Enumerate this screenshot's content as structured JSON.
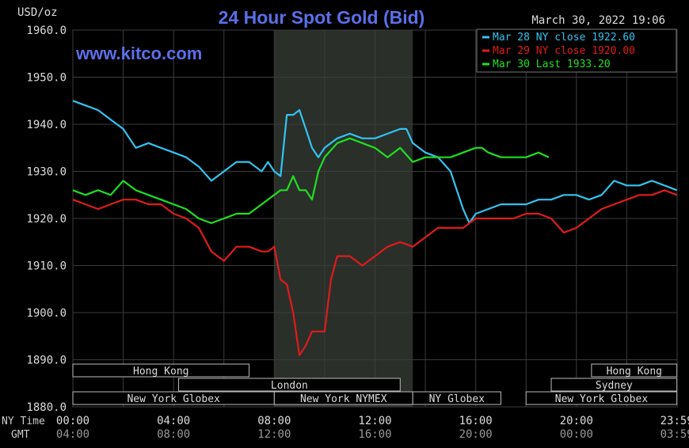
{
  "header": {
    "unit_label": "USD/oz",
    "title": "24 Hour Spot Gold (Bid)",
    "timestamp": "March 30, 2022 19:06",
    "watermark": "www.kitco.com"
  },
  "legend": [
    {
      "label": "Mar 28 NY close 1922.60",
      "color": "#33c3f0"
    },
    {
      "label": "Mar 29 NY close 1920.00",
      "color": "#e01b1b"
    },
    {
      "label": "Mar 30 Last 1933.20",
      "color": "#1fe01f"
    }
  ],
  "axis": {
    "ny_time_label": "NY Time",
    "gmt_label": "GMT",
    "ny_ticks": [
      "00:00",
      "04:00",
      "08:00",
      "12:00",
      "16:00",
      "20:00",
      "23:59"
    ],
    "gmt_ticks": [
      "04:00",
      "08:00",
      "12:00",
      "16:00",
      "20:00",
      "00:00",
      "03:59"
    ]
  },
  "sessions": {
    "row1": [
      {
        "label": "Hong Kong",
        "start": 0.0,
        "end": 7.0
      },
      {
        "label": "Hong Kong",
        "start": 20.6,
        "end": 23.99
      }
    ],
    "row2": [
      {
        "label": "London",
        "start": 4.2,
        "end": 13.0
      },
      {
        "label": "Sydney",
        "start": 19.0,
        "end": 23.99
      }
    ],
    "row3": [
      {
        "label": "New York Globex",
        "start": 0.0,
        "end": 8.0
      },
      {
        "label": "New York NYMEX",
        "start": 8.0,
        "end": 13.5
      },
      {
        "label": "NY Globex",
        "start": 13.5,
        "end": 17.0
      },
      {
        "label": "New York Globex",
        "start": 18.0,
        "end": 23.99
      }
    ]
  },
  "chart_data": {
    "type": "line",
    "title": "24 Hour Spot Gold (Bid)",
    "ylabel": "USD/oz",
    "xlabel": "NY Time",
    "xlim": [
      0,
      24
    ],
    "ylim": [
      1880,
      1960
    ],
    "yticks": [
      1960,
      1950,
      1940,
      1930,
      1920,
      1910,
      1900,
      1890,
      1880
    ],
    "highlight_band": [
      8.0,
      13.5
    ],
    "series": [
      {
        "name": "Mar 28 NY close 1922.60",
        "color": "#33c3f0",
        "x": [
          0.0,
          0.5,
          1.0,
          1.5,
          2.0,
          2.25,
          2.5,
          3.0,
          3.5,
          4.0,
          4.5,
          5.0,
          5.5,
          6.0,
          6.5,
          7.0,
          7.5,
          7.75,
          8.0,
          8.25,
          8.5,
          8.75,
          9.0,
          9.25,
          9.5,
          9.75,
          10.0,
          10.5,
          11.0,
          11.5,
          12.0,
          12.5,
          13.0,
          13.25,
          13.5,
          14.0,
          14.5,
          15.0,
          15.5,
          15.75,
          16.0,
          16.5,
          17.0,
          17.5,
          18.0,
          18.5,
          19.0,
          19.5,
          20.0,
          20.5,
          21.0,
          21.5,
          22.0,
          22.5,
          23.0,
          23.5,
          23.99
        ],
        "y": [
          1945,
          1944,
          1943,
          1941,
          1939,
          1937,
          1935,
          1936,
          1935,
          1934,
          1933,
          1931,
          1928,
          1930,
          1932,
          1932,
          1930,
          1932,
          1930,
          1929,
          1942,
          1942,
          1943,
          1939,
          1935,
          1933,
          1935,
          1937,
          1938,
          1937,
          1937,
          1938,
          1939,
          1939,
          1936,
          1934,
          1933,
          1930,
          1922,
          1919,
          1921,
          1922,
          1923,
          1923,
          1923,
          1924,
          1924,
          1925,
          1925,
          1924,
          1925,
          1928,
          1927,
          1927,
          1928,
          1927,
          1926
        ]
      },
      {
        "name": "Mar 29 NY close 1920.00",
        "color": "#e01b1b",
        "x": [
          0.0,
          0.5,
          1.0,
          1.5,
          2.0,
          2.5,
          3.0,
          3.5,
          4.0,
          4.5,
          5.0,
          5.5,
          6.0,
          6.5,
          7.0,
          7.5,
          7.75,
          8.0,
          8.25,
          8.5,
          8.75,
          9.0,
          9.25,
          9.5,
          9.75,
          10.0,
          10.25,
          10.5,
          11.0,
          11.5,
          12.0,
          12.5,
          13.0,
          13.5,
          14.0,
          14.5,
          15.0,
          15.5,
          16.0,
          16.5,
          17.0,
          17.5,
          18.0,
          18.5,
          19.0,
          19.5,
          20.0,
          20.5,
          21.0,
          21.5,
          22.0,
          22.5,
          23.0,
          23.5,
          23.99
        ],
        "y": [
          1924,
          1923,
          1922,
          1923,
          1924,
          1924,
          1923,
          1923,
          1921,
          1920,
          1918,
          1913,
          1911,
          1914,
          1914,
          1913,
          1913,
          1914,
          1907,
          1906,
          1900,
          1891,
          1893,
          1896,
          1896,
          1896,
          1907,
          1912,
          1912,
          1910,
          1912,
          1914,
          1915,
          1914,
          1916,
          1918,
          1918,
          1918,
          1920,
          1920,
          1920,
          1920,
          1921,
          1921,
          1920,
          1917,
          1918,
          1920,
          1922,
          1923,
          1924,
          1925,
          1925,
          1926,
          1925
        ]
      },
      {
        "name": "Mar 30 Last 1933.20",
        "color": "#1fe01f",
        "x": [
          0.0,
          0.5,
          1.0,
          1.5,
          2.0,
          2.5,
          3.0,
          3.5,
          4.0,
          4.5,
          5.0,
          5.5,
          6.0,
          6.5,
          7.0,
          7.5,
          8.0,
          8.25,
          8.5,
          8.75,
          9.0,
          9.25,
          9.5,
          9.75,
          10.0,
          10.5,
          11.0,
          11.5,
          12.0,
          12.5,
          13.0,
          13.5,
          14.0,
          14.5,
          15.0,
          15.5,
          16.0,
          16.25,
          16.5,
          17.0,
          17.5,
          18.0,
          18.5,
          18.9
        ],
        "y": [
          1926,
          1925,
          1926,
          1925,
          1928,
          1926,
          1925,
          1924,
          1923,
          1922,
          1920,
          1919,
          1920,
          1921,
          1921,
          1923,
          1925,
          1926,
          1926,
          1929,
          1926,
          1926,
          1924,
          1930,
          1933,
          1936,
          1937,
          1936,
          1935,
          1933,
          1935,
          1932,
          1933,
          1933,
          1933,
          1934,
          1935,
          1935,
          1934,
          1933,
          1933,
          1933,
          1934,
          1933
        ]
      }
    ]
  }
}
